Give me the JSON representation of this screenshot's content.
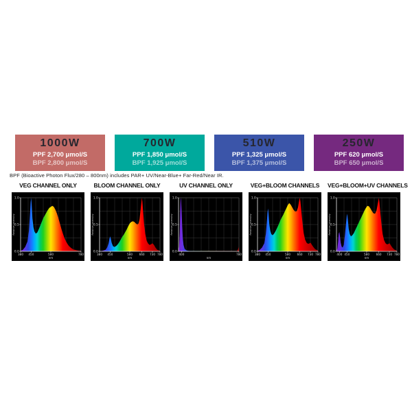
{
  "power_boxes": [
    {
      "watt": "1000W",
      "ppf": "PPF 2,700 μmol/S",
      "bpf": "BPF 2,800 μmol/S",
      "color": "#c26b67"
    },
    {
      "watt": "700W",
      "ppf": "PPF 1,850 μmol/S",
      "bpf": "BPF 1,925 μmol/S",
      "color": "#00a99c"
    },
    {
      "watt": "510W",
      "ppf": "PPF 1,325 μmol/S",
      "bpf": "BPF 1,375 μmol/S",
      "color": "#3b55a9"
    },
    {
      "watt": "250W",
      "ppf": "PPF 620 μmol/S",
      "bpf": "BPF 650 μmol/S",
      "color": "#75297f"
    }
  ],
  "footnote": "BPF (Bioactive Photon Flux/280 – 800nm) includes PAR+ UV/Near-Blue+ Far-Red/Near IR.",
  "spectrum_colors": {
    "stops": [
      [
        380,
        "#7a1fd0"
      ],
      [
        400,
        "#6f2fe0"
      ],
      [
        430,
        "#2f48e8"
      ],
      [
        450,
        "#1f6fff"
      ],
      [
        470,
        "#00a8ff"
      ],
      [
        490,
        "#00d4d4"
      ],
      [
        510,
        "#00cc66"
      ],
      [
        530,
        "#1fd11f"
      ],
      [
        560,
        "#a8e000"
      ],
      [
        580,
        "#ffe400"
      ],
      [
        600,
        "#ffb000"
      ],
      [
        620,
        "#ff7300"
      ],
      [
        645,
        "#ff2a00"
      ],
      [
        660,
        "#ff0000"
      ],
      [
        700,
        "#d90000"
      ],
      [
        780,
        "#960000"
      ]
    ],
    "grid": "#3a3a3a",
    "axis": "#e8e8e8",
    "tick_text": "#dddddd",
    "panel_bg": "#000000"
  },
  "chart_data": [
    {
      "type": "area",
      "title": "VEG CHANNEL ONLY",
      "xlabel": "nm",
      "ylabel": "Relative Intensity",
      "xlim": [
        380,
        780
      ],
      "ylim": [
        0,
        1
      ],
      "xticks": [
        380,
        450,
        580,
        780
      ],
      "yticks": [
        0,
        0.5,
        1
      ],
      "x": [
        380,
        395,
        410,
        425,
        435,
        442,
        447,
        450,
        453,
        458,
        465,
        472,
        480,
        490,
        500,
        510,
        520,
        530,
        540,
        550,
        560,
        570,
        580,
        590,
        600,
        610,
        620,
        630,
        640,
        650,
        660,
        670,
        680,
        690,
        700,
        715,
        730,
        750,
        765,
        780
      ],
      "y": [
        0.01,
        0.03,
        0.08,
        0.18,
        0.38,
        0.68,
        0.92,
        1.0,
        0.88,
        0.62,
        0.45,
        0.37,
        0.33,
        0.35,
        0.41,
        0.48,
        0.55,
        0.62,
        0.67,
        0.72,
        0.77,
        0.81,
        0.83,
        0.85,
        0.83,
        0.78,
        0.71,
        0.62,
        0.52,
        0.42,
        0.33,
        0.25,
        0.19,
        0.14,
        0.1,
        0.06,
        0.035,
        0.02,
        0.012,
        0.008
      ]
    },
    {
      "type": "area",
      "title": "BLOOM CHANNEL ONLY",
      "xlabel": "nm",
      "ylabel": "Relative Intensity",
      "xlim": [
        380,
        780
      ],
      "ylim": [
        0,
        1
      ],
      "xticks": [
        380,
        450,
        580,
        660,
        730,
        780
      ],
      "yticks": [
        0,
        0.5,
        1
      ],
      "x": [
        380,
        400,
        420,
        432,
        440,
        446,
        450,
        454,
        460,
        468,
        478,
        490,
        500,
        510,
        520,
        530,
        540,
        550,
        560,
        570,
        580,
        590,
        600,
        610,
        620,
        630,
        638,
        645,
        652,
        657,
        660,
        663,
        668,
        675,
        683,
        692,
        700,
        710,
        720,
        730,
        740,
        750,
        762,
        780
      ],
      "y": [
        0.005,
        0.01,
        0.03,
        0.08,
        0.15,
        0.24,
        0.28,
        0.24,
        0.16,
        0.1,
        0.08,
        0.1,
        0.13,
        0.17,
        0.22,
        0.27,
        0.31,
        0.36,
        0.41,
        0.47,
        0.52,
        0.55,
        0.56,
        0.55,
        0.52,
        0.5,
        0.52,
        0.6,
        0.78,
        0.92,
        1.0,
        0.93,
        0.75,
        0.5,
        0.32,
        0.2,
        0.15,
        0.12,
        0.13,
        0.15,
        0.12,
        0.07,
        0.03,
        0.01
      ]
    },
    {
      "type": "area",
      "title": "UV CHANNEL ONLY",
      "xlabel": "nm",
      "ylabel": "Relative Intensity",
      "xlim": [
        380,
        780
      ],
      "ylim": [
        0,
        1
      ],
      "xticks": [
        400,
        780
      ],
      "yticks": [
        0,
        0.5,
        1
      ],
      "x": [
        380,
        384,
        388,
        391,
        394,
        397,
        400,
        404,
        408,
        413,
        420,
        430,
        442,
        458,
        480,
        520,
        600,
        700,
        758,
        768,
        774,
        780
      ],
      "y": [
        0.02,
        0.08,
        0.35,
        0.72,
        1.0,
        0.96,
        0.78,
        0.48,
        0.25,
        0.12,
        0.05,
        0.02,
        0.01,
        0.005,
        0.003,
        0.002,
        0.002,
        0.002,
        0.003,
        0.01,
        0.04,
        0.09
      ]
    },
    {
      "type": "area",
      "title": "VEG+BLOOM CHANNELS",
      "xlabel": "nm",
      "ylabel": "Relative Intensity",
      "xlim": [
        380,
        780
      ],
      "ylim": [
        0,
        1
      ],
      "xticks": [
        380,
        450,
        580,
        660,
        730,
        780
      ],
      "yticks": [
        0,
        0.5,
        1
      ],
      "x": [
        380,
        395,
        410,
        425,
        435,
        442,
        447,
        450,
        453,
        458,
        465,
        472,
        480,
        490,
        500,
        510,
        520,
        530,
        540,
        550,
        560,
        570,
        580,
        590,
        600,
        610,
        620,
        630,
        640,
        648,
        654,
        658,
        660,
        664,
        670,
        678,
        686,
        695,
        705,
        715,
        725,
        732,
        740,
        750,
        762,
        780
      ],
      "y": [
        0.01,
        0.03,
        0.07,
        0.15,
        0.32,
        0.55,
        0.74,
        0.8,
        0.7,
        0.5,
        0.38,
        0.32,
        0.3,
        0.33,
        0.38,
        0.44,
        0.5,
        0.57,
        0.63,
        0.68,
        0.74,
        0.8,
        0.86,
        0.9,
        0.87,
        0.82,
        0.77,
        0.74,
        0.75,
        0.82,
        0.92,
        0.98,
        1.0,
        0.93,
        0.76,
        0.52,
        0.34,
        0.22,
        0.16,
        0.14,
        0.15,
        0.16,
        0.12,
        0.08,
        0.04,
        0.015
      ]
    },
    {
      "type": "area",
      "title": "VEG+BLOOM+UV CHANNELS",
      "xlabel": "nm",
      "ylabel": "Relative Intensity",
      "xlim": [
        380,
        780
      ],
      "ylim": [
        0,
        1
      ],
      "xticks": [
        400,
        450,
        580,
        660,
        730,
        780
      ],
      "yticks": [
        0,
        0.5,
        1
      ],
      "x": [
        380,
        386,
        391,
        395,
        399,
        403,
        408,
        414,
        421,
        428,
        436,
        443,
        448,
        451,
        455,
        461,
        468,
        476,
        485,
        495,
        505,
        515,
        525,
        535,
        545,
        555,
        565,
        575,
        585,
        595,
        605,
        615,
        625,
        635,
        645,
        652,
        658,
        660,
        664,
        670,
        678,
        686,
        695,
        705,
        715,
        725,
        732,
        740,
        750,
        762,
        780
      ],
      "y": [
        0.01,
        0.05,
        0.18,
        0.33,
        0.36,
        0.28,
        0.16,
        0.09,
        0.07,
        0.12,
        0.3,
        0.52,
        0.66,
        0.7,
        0.6,
        0.42,
        0.32,
        0.28,
        0.3,
        0.34,
        0.4,
        0.46,
        0.52,
        0.58,
        0.64,
        0.7,
        0.76,
        0.81,
        0.85,
        0.84,
        0.8,
        0.75,
        0.71,
        0.7,
        0.76,
        0.86,
        0.96,
        1.0,
        0.92,
        0.74,
        0.5,
        0.32,
        0.21,
        0.15,
        0.13,
        0.14,
        0.15,
        0.11,
        0.07,
        0.035,
        0.012
      ]
    }
  ]
}
